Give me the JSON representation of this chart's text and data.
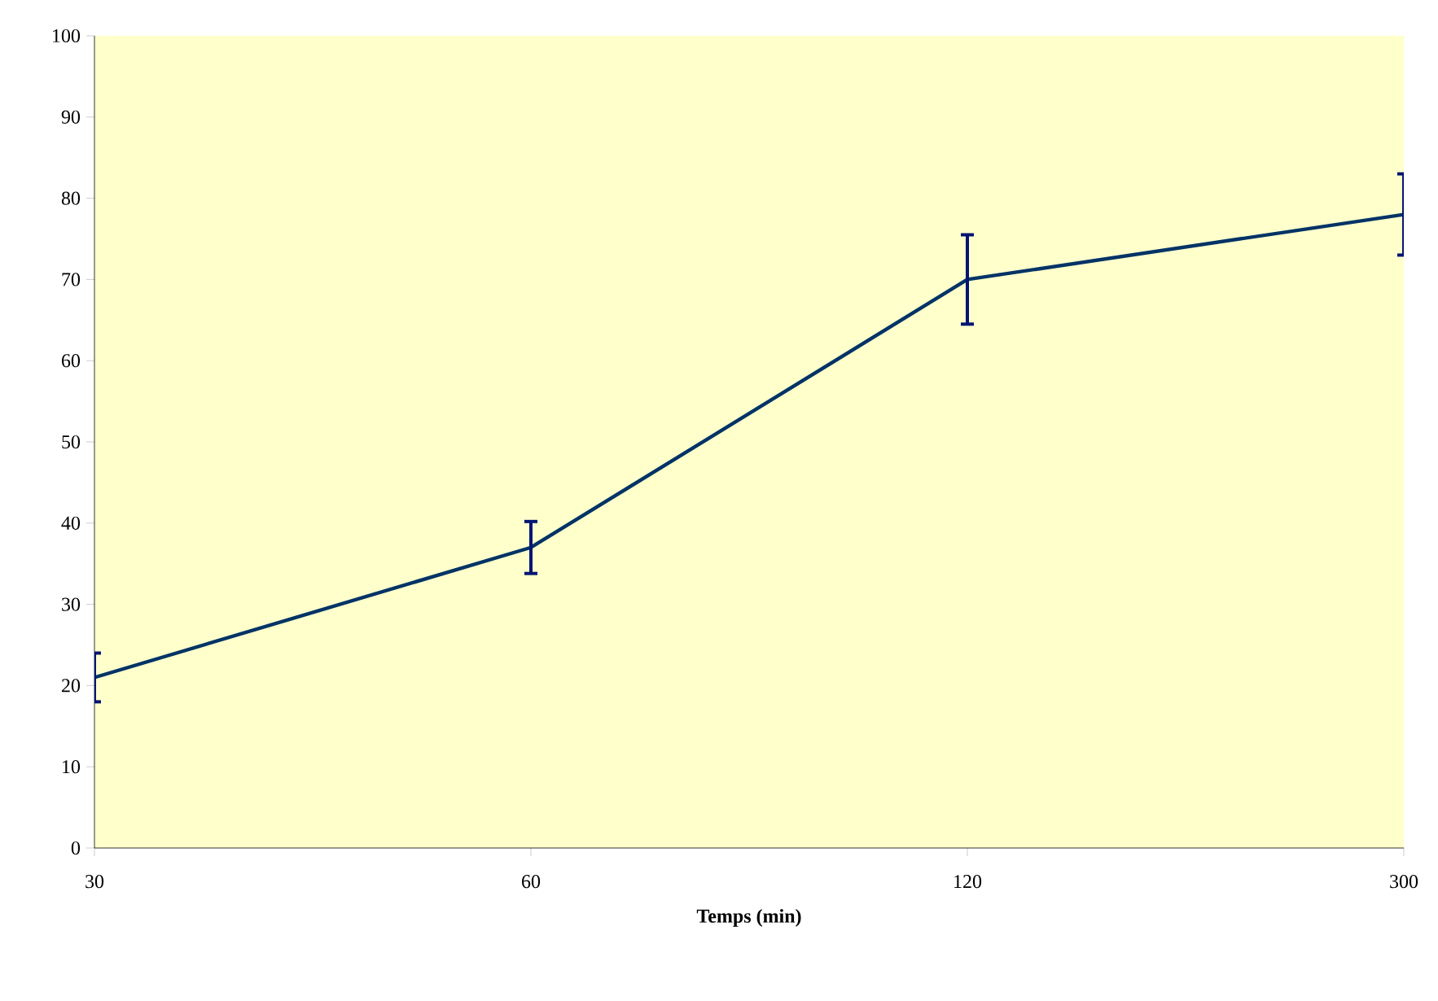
{
  "chart_data": {
    "type": "line",
    "xlabel": "**Temps (min)**",
    "categories": [
      "30",
      "60",
      "120",
      "300"
    ],
    "series": [
      {
        "color": "#003366",
        "values": [
          21,
          37,
          70,
          78
        ],
        "errors": [
          3,
          3.2,
          5.5,
          5
        ]
      }
    ],
    "ylim": [
      0,
      100
    ],
    "yticks": [
      0,
      10,
      20,
      30,
      40,
      50,
      60,
      70,
      80,
      90,
      100
    ],
    "grid": false,
    "marker": "none",
    "line_style": "solid"
  }
}
